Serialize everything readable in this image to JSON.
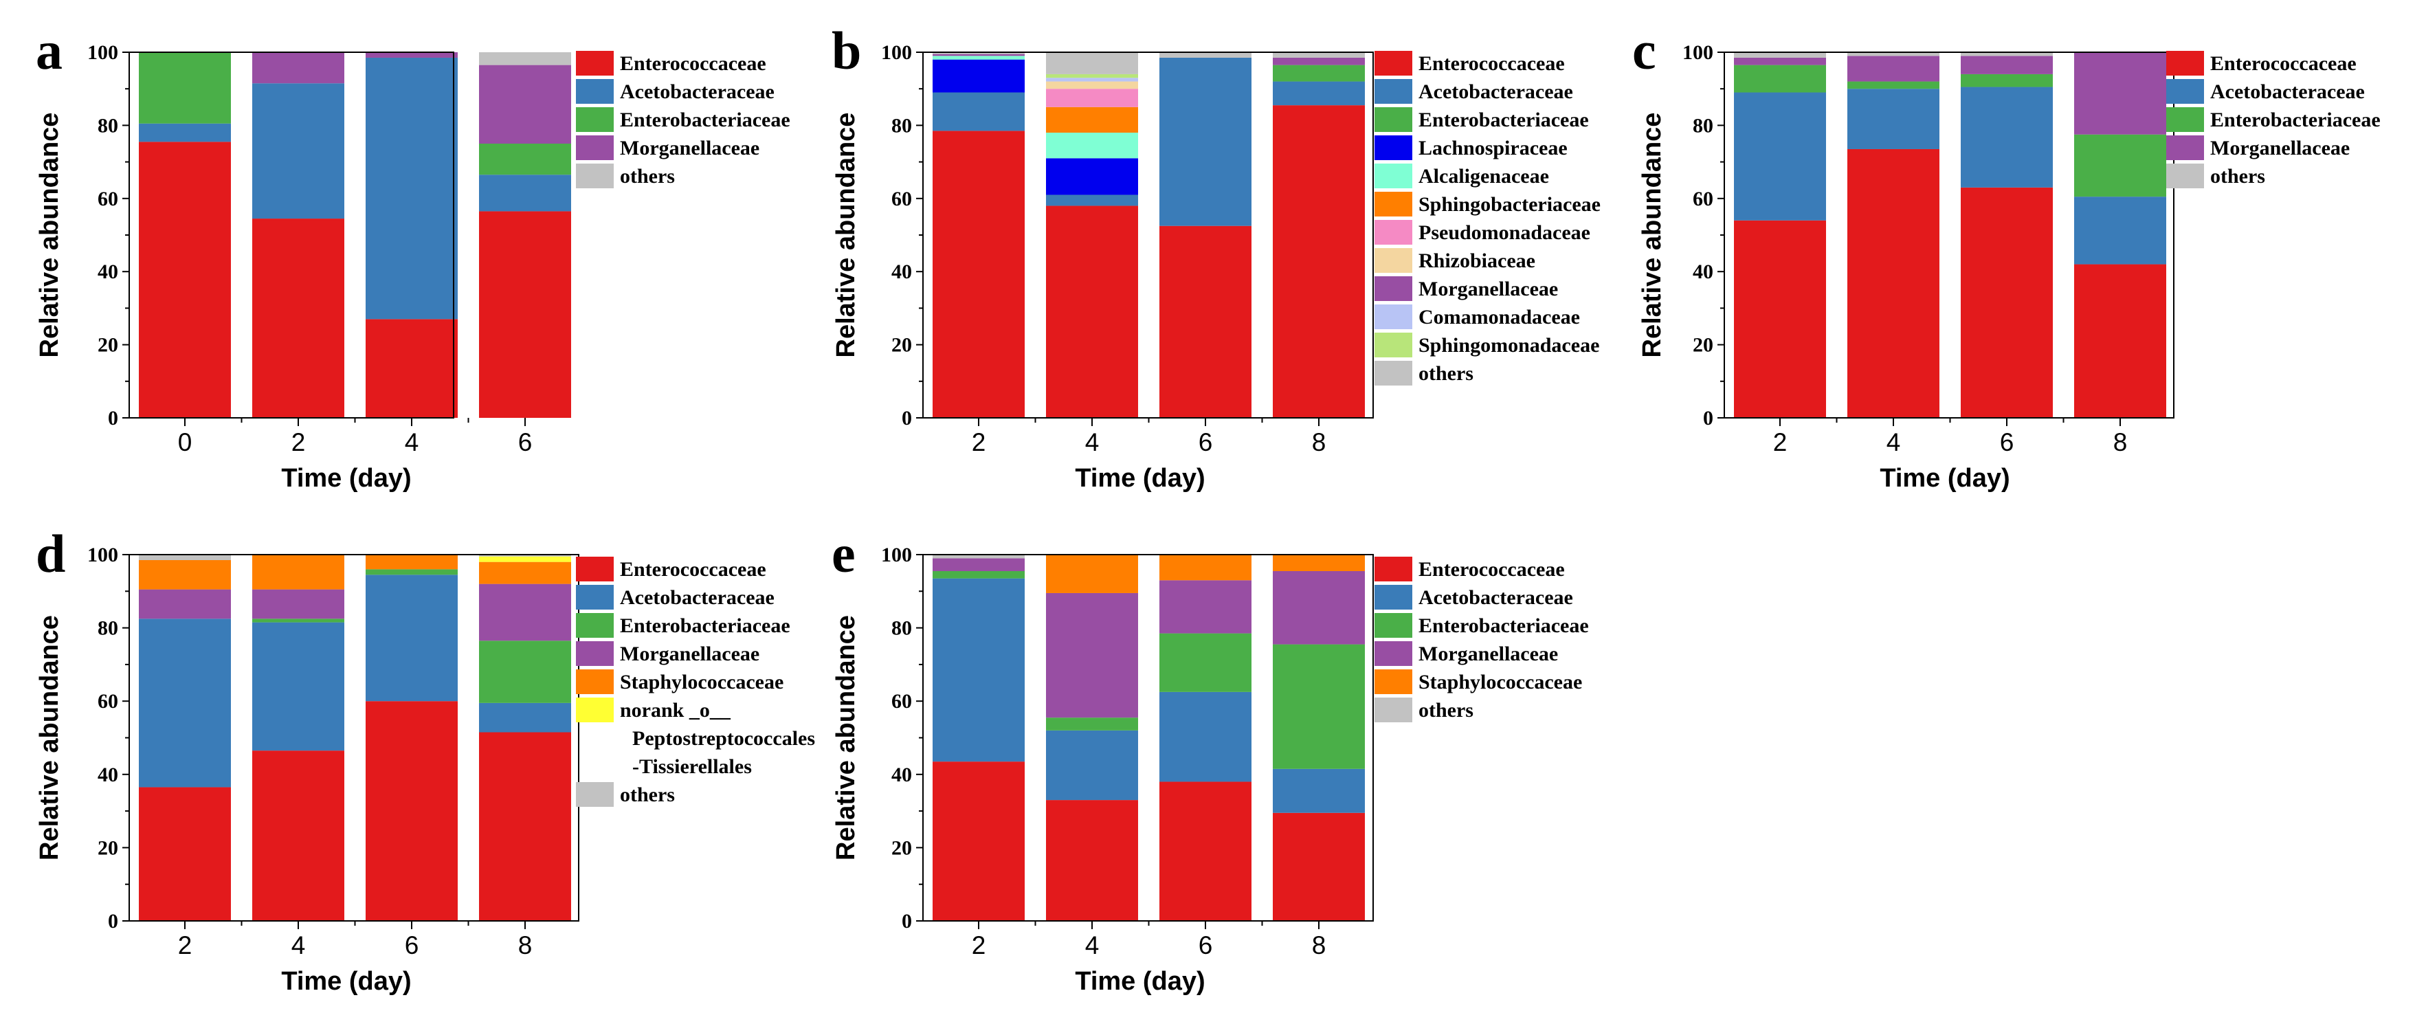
{
  "colors": {
    "Enterococcaceae": "#e31a1c",
    "Acetobacteraceae": "#3a7cb8",
    "Enterobacteriaceae": "#4aaf48",
    "Morganellaceae": "#984ea3",
    "others": "#c2c2c2",
    "Lachnospiraceae": "#0000ee",
    "Alcaligenaceae": "#7fffd4",
    "Sphingobacteriaceae": "#ff7f00",
    "Pseudomonadaceae": "#f58ac4",
    "Rhizobiaceae": "#f4d6a0",
    "Comamonadaceae": "#b8c4f5",
    "Sphingomonadaceae": "#b8e57a",
    "Staphylococcaceae": "#ff7f00",
    "norank_o__Peptostreptococcales-Tissierellales": "#ffff33"
  },
  "chart_data": [
    {
      "panel": "a",
      "type": "bar",
      "stacked": true,
      "xlabel": "Time (day)",
      "ylabel": "Relative abundance",
      "ylim": [
        0,
        100
      ],
      "yticks": [
        0,
        20,
        40,
        60,
        80,
        100
      ],
      "categories": [
        "0",
        "2",
        "4",
        "6"
      ],
      "legend": [
        {
          "name": "Enterococcaceae"
        },
        {
          "name": "Acetobacteraceae"
        },
        {
          "name": "Enterobacteriaceae"
        },
        {
          "name": "Morganellaceae"
        },
        {
          "name": "others"
        }
      ],
      "series": [
        {
          "name": "Enterococcaceae",
          "values": [
            75.5,
            54.5,
            27,
            56.5
          ]
        },
        {
          "name": "Acetobacteraceae",
          "values": [
            5,
            37,
            71.5,
            10
          ]
        },
        {
          "name": "Enterobacteriaceae",
          "values": [
            19.5,
            0,
            0,
            8.5
          ]
        },
        {
          "name": "Morganellaceae",
          "values": [
            0,
            8.5,
            1.5,
            21.5
          ]
        },
        {
          "name": "others",
          "values": [
            0,
            0,
            0,
            3.5
          ]
        }
      ]
    },
    {
      "panel": "b",
      "type": "bar",
      "stacked": true,
      "xlabel": "Time (day)",
      "ylabel": "Relative abundance",
      "ylim": [
        0,
        100
      ],
      "yticks": [
        0,
        20,
        40,
        60,
        80,
        100
      ],
      "categories": [
        "2",
        "4",
        "6",
        "8"
      ],
      "legend": [
        {
          "name": "Enterococcaceae"
        },
        {
          "name": "Acetobacteraceae"
        },
        {
          "name": "Enterobacteriaceae"
        },
        {
          "name": "Lachnospiraceae"
        },
        {
          "name": "Alcaligenaceae"
        },
        {
          "name": "Sphingobacteriaceae"
        },
        {
          "name": "Pseudomonadaceae"
        },
        {
          "name": "Rhizobiaceae"
        },
        {
          "name": "Morganellaceae"
        },
        {
          "name": "Comamonadaceae"
        },
        {
          "name": "Sphingomonadaceae"
        },
        {
          "name": "others"
        }
      ],
      "series": [
        {
          "name": "Enterococcaceae",
          "values": [
            78.5,
            58,
            52.5,
            85.5
          ]
        },
        {
          "name": "Acetobacteraceae",
          "values": [
            10.5,
            3,
            46,
            6.5
          ]
        },
        {
          "name": "Enterobacteriaceae",
          "values": [
            0,
            0,
            0,
            4.5
          ]
        },
        {
          "name": "Lachnospiraceae",
          "values": [
            9,
            10,
            0,
            0
          ]
        },
        {
          "name": "Alcaligenaceae",
          "values": [
            1,
            7,
            0,
            0
          ]
        },
        {
          "name": "Sphingobacteriaceae",
          "values": [
            0,
            7,
            0,
            0
          ]
        },
        {
          "name": "Pseudomonadaceae",
          "values": [
            0,
            5,
            0,
            0
          ]
        },
        {
          "name": "Rhizobiaceae",
          "values": [
            0,
            2,
            0,
            0
          ]
        },
        {
          "name": "Morganellaceae",
          "values": [
            0.5,
            0,
            0,
            2
          ]
        },
        {
          "name": "Comamonadaceae",
          "values": [
            0,
            1,
            0,
            0
          ]
        },
        {
          "name": "Sphingomonadaceae",
          "values": [
            0,
            1,
            0,
            0
          ]
        },
        {
          "name": "others",
          "values": [
            0.5,
            6,
            1.5,
            1.5
          ]
        }
      ]
    },
    {
      "panel": "c",
      "type": "bar",
      "stacked": true,
      "xlabel": "Time (day)",
      "ylabel": "Relative abundance",
      "ylim": [
        0,
        100
      ],
      "yticks": [
        0,
        20,
        40,
        60,
        80,
        100
      ],
      "categories": [
        "2",
        "4",
        "6",
        "8"
      ],
      "legend": [
        {
          "name": "Enterococcaceae"
        },
        {
          "name": "Acetobacteraceae"
        },
        {
          "name": "Enterobacteriaceae"
        },
        {
          "name": "Morganellaceae"
        },
        {
          "name": "others"
        }
      ],
      "series": [
        {
          "name": "Enterococcaceae",
          "values": [
            54,
            73.5,
            63,
            42
          ]
        },
        {
          "name": "Acetobacteraceae",
          "values": [
            35,
            16.5,
            27.5,
            18.5
          ]
        },
        {
          "name": "Enterobacteriaceae",
          "values": [
            7.5,
            2,
            3.5,
            17
          ]
        },
        {
          "name": "Morganellaceae",
          "values": [
            2,
            7,
            5,
            22.5
          ]
        },
        {
          "name": "others",
          "values": [
            1.5,
            1,
            1,
            0
          ]
        }
      ]
    },
    {
      "panel": "d",
      "type": "bar",
      "stacked": true,
      "xlabel": "Time (day)",
      "ylabel": "Relative abundance",
      "ylim": [
        0,
        100
      ],
      "yticks": [
        0,
        20,
        40,
        60,
        80,
        100
      ],
      "categories": [
        "2",
        "4",
        "6",
        "8"
      ],
      "legend": [
        {
          "name": "Enterococcaceae"
        },
        {
          "name": "Acetobacteraceae"
        },
        {
          "name": "Enterobacteriaceae"
        },
        {
          "name": "Morganellaceae"
        },
        {
          "name": "Staphylococcaceae"
        },
        {
          "name": "norank_o__Peptostreptococcales-Tissierellales",
          "lines": [
            "norank _o__",
            "Peptostreptococcales",
            "-Tissierellales"
          ]
        },
        {
          "name": "others"
        }
      ],
      "series": [
        {
          "name": "Enterococcaceae",
          "values": [
            36.5,
            46.5,
            60,
            51.5
          ]
        },
        {
          "name": "Acetobacteraceae",
          "values": [
            46,
            35,
            34.5,
            8
          ]
        },
        {
          "name": "Enterobacteriaceae",
          "values": [
            0,
            1,
            1.5,
            17
          ]
        },
        {
          "name": "Morganellaceae",
          "values": [
            8,
            8,
            0,
            15.5
          ]
        },
        {
          "name": "Staphylococcaceae",
          "values": [
            8,
            9.5,
            4,
            6
          ]
        },
        {
          "name": "norank_o__Peptostreptococcales-Tissierellales",
          "values": [
            0,
            0,
            0,
            1.5
          ]
        },
        {
          "name": "others",
          "values": [
            1.5,
            0,
            0,
            0.5
          ]
        }
      ]
    },
    {
      "panel": "e",
      "type": "bar",
      "stacked": true,
      "xlabel": "Time (day)",
      "ylabel": "Relative abundance",
      "ylim": [
        0,
        100
      ],
      "yticks": [
        0,
        20,
        40,
        60,
        80,
        100
      ],
      "categories": [
        "2",
        "4",
        "6",
        "8"
      ],
      "legend": [
        {
          "name": "Enterococcaceae"
        },
        {
          "name": "Acetobacteraceae"
        },
        {
          "name": "Enterobacteriaceae"
        },
        {
          "name": "Morganellaceae"
        },
        {
          "name": "Staphylococcaceae"
        },
        {
          "name": "others"
        }
      ],
      "series": [
        {
          "name": "Enterococcaceae",
          "values": [
            43.5,
            33,
            38,
            29.5
          ]
        },
        {
          "name": "Acetobacteraceae",
          "values": [
            50,
            19,
            24.5,
            12
          ]
        },
        {
          "name": "Enterobacteriaceae",
          "values": [
            2,
            3.5,
            16,
            34
          ]
        },
        {
          "name": "Morganellaceae",
          "values": [
            3.5,
            34,
            14.5,
            20
          ]
        },
        {
          "name": "Staphylococcaceae",
          "values": [
            0,
            10.5,
            7,
            4.5
          ]
        },
        {
          "name": "others",
          "values": [
            1,
            0,
            0,
            0
          ]
        }
      ]
    }
  ]
}
